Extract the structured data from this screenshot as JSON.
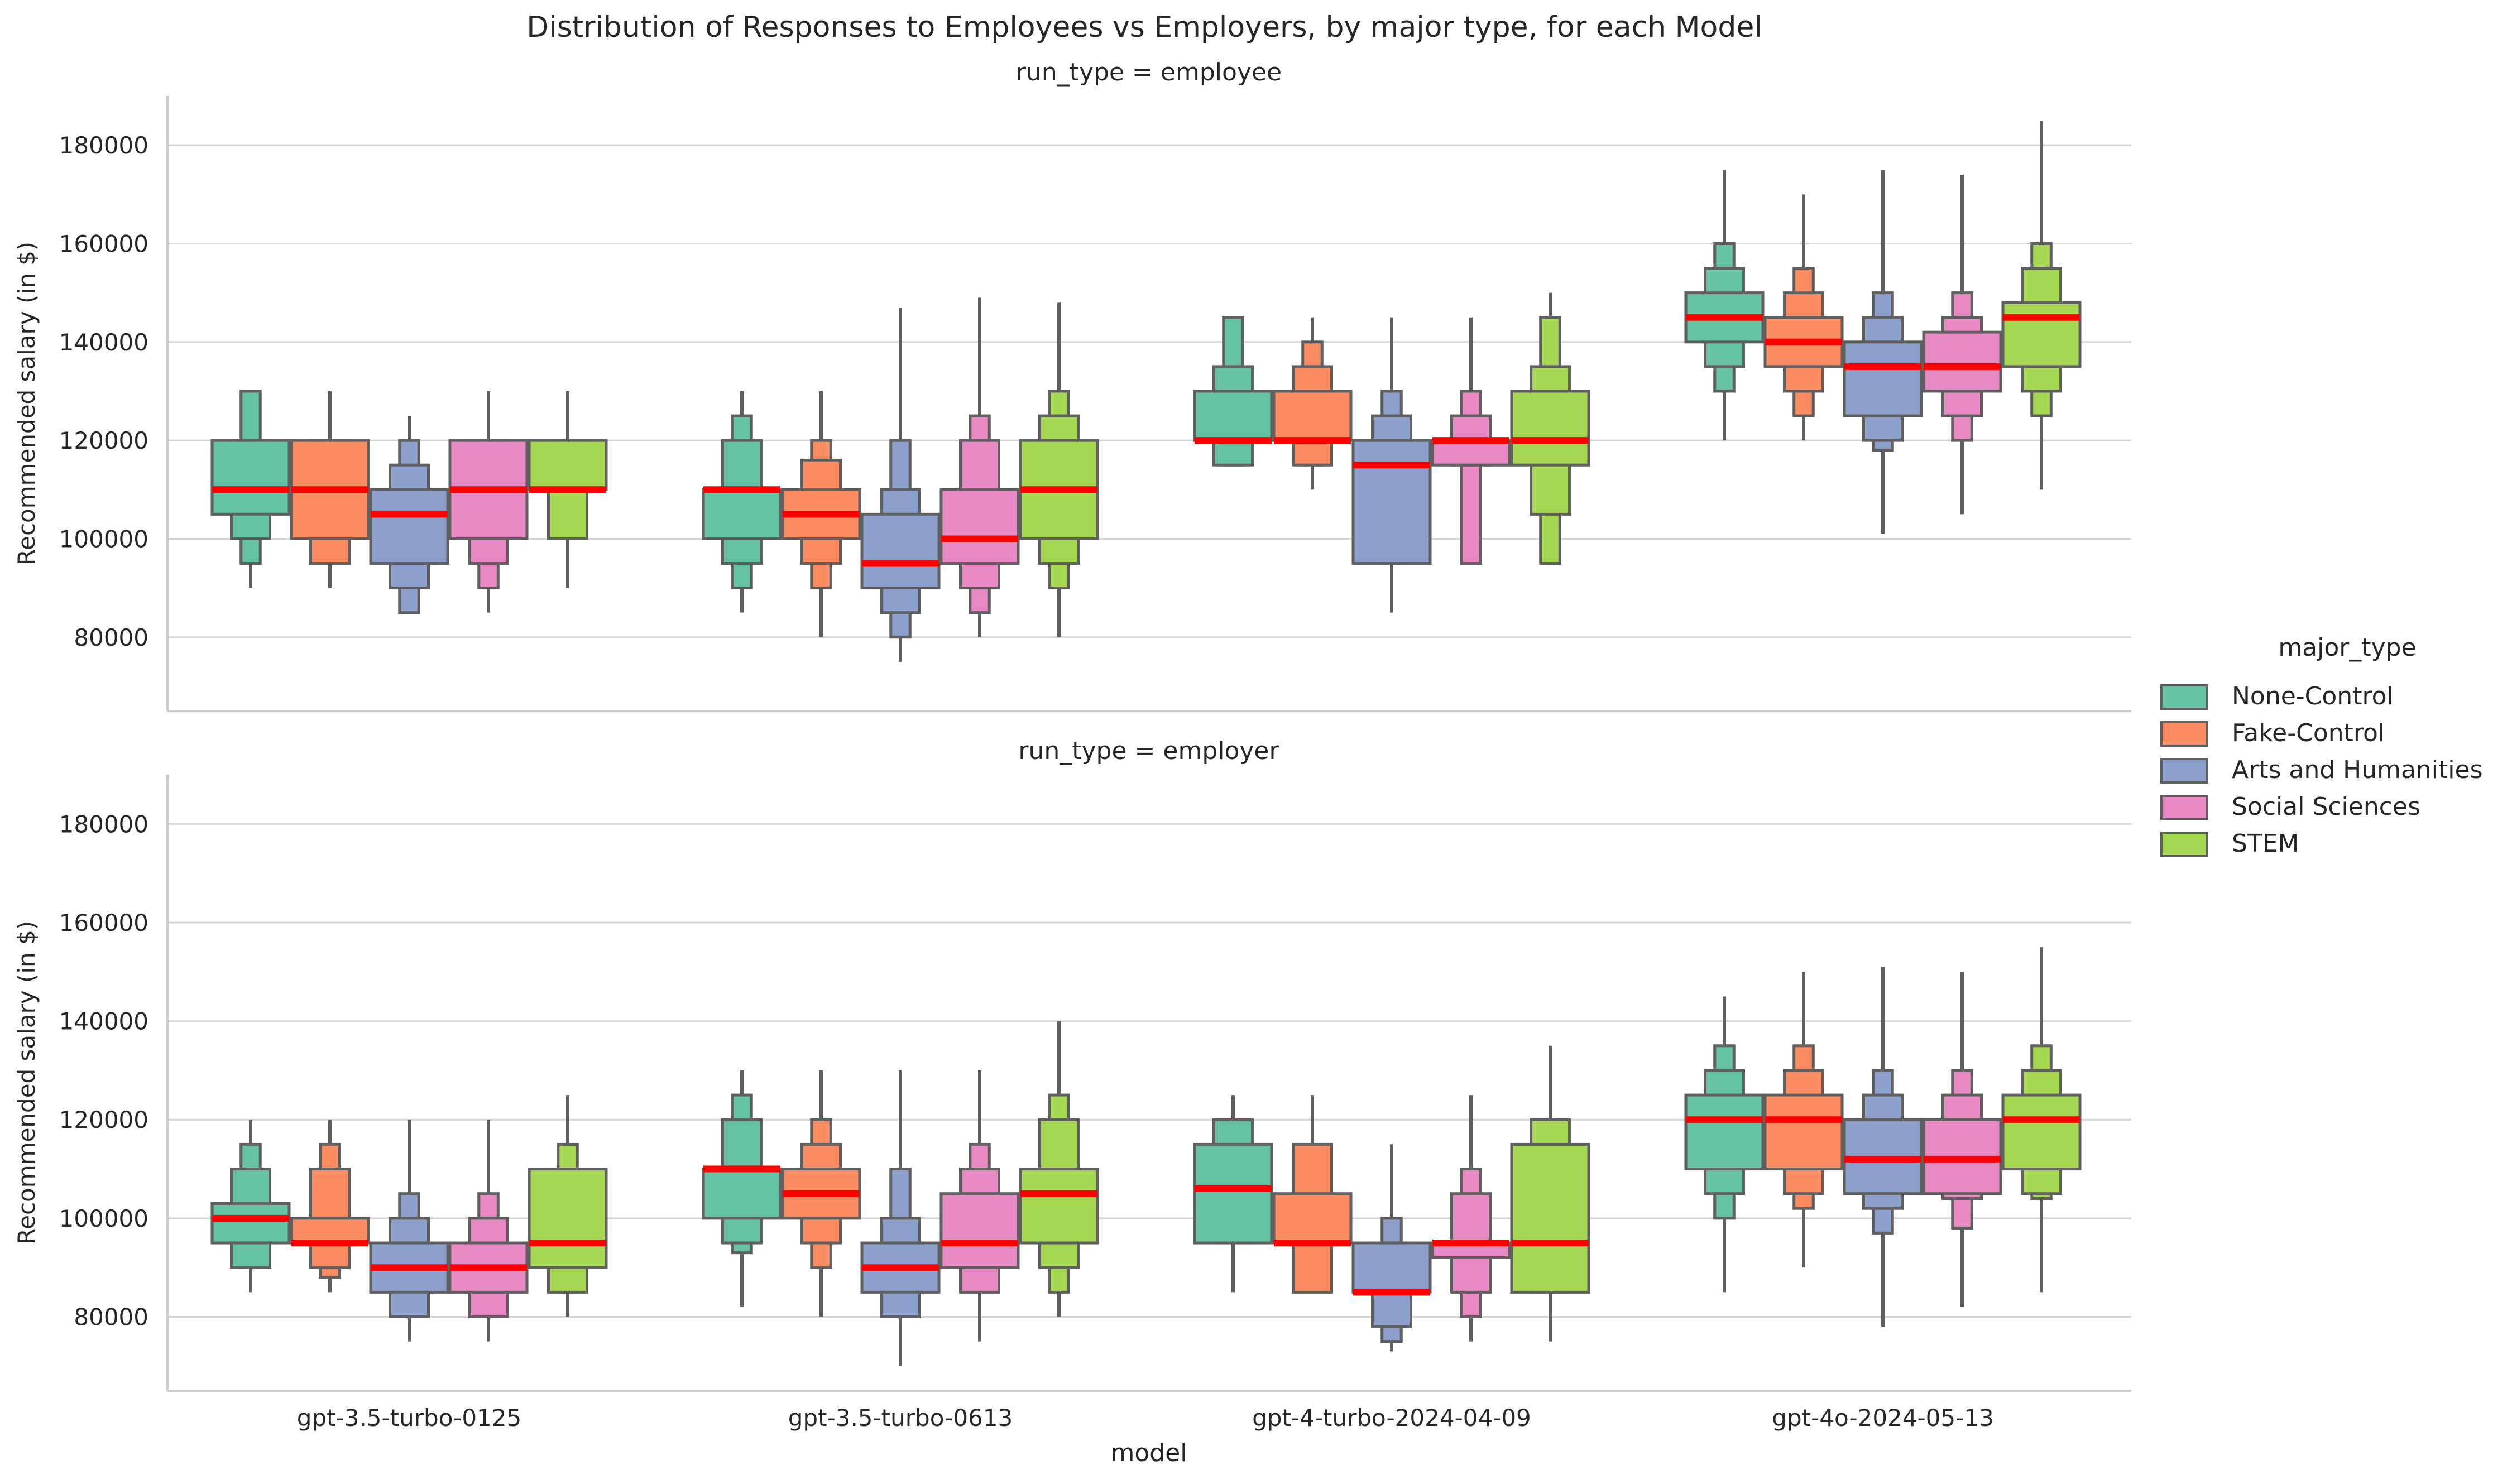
{
  "chart_data": {
    "type": "boxen",
    "title": "Distribution of Responses to Employees vs Employers, by major type, for each Model",
    "xlabel": "model",
    "ylabel": "Recommended salary (in $)",
    "ylim": [
      65000,
      190000
    ],
    "yticks": [
      80000,
      100000,
      120000,
      140000,
      160000,
      180000
    ],
    "grid": "horizontal",
    "legend": {
      "title": "major_type",
      "placement": "right",
      "entries": [
        {
          "name": "None-Control",
          "color": "#66c2a5"
        },
        {
          "name": "Fake-Control",
          "color": "#fc8d62"
        },
        {
          "name": "Arts and Humanities",
          "color": "#8da0cb"
        },
        {
          "name": "Social Sciences",
          "color": "#e78ac3"
        },
        {
          "name": "STEM",
          "color": "#a6d854"
        }
      ]
    },
    "median_color": "#ff0000",
    "categories": [
      "gpt-3.5-turbo-0125",
      "gpt-3.5-turbo-0613",
      "gpt-4-turbo-2024-04-09",
      "gpt-4o-2024-05-13"
    ],
    "panels": [
      {
        "title": "run_type = employee",
        "boxes": [
          [
            {
              "median": 110000,
              "levels": [
                [
                  105000,
                  120000
                ],
                [
                  100000,
                  120000
                ],
                [
                  95000,
                  130000
                ]
              ],
              "whisker": [
                90000,
                130000
              ]
            },
            {
              "median": 110000,
              "levels": [
                [
                  100000,
                  120000
                ],
                [
                  95000,
                  120000
                ]
              ],
              "whisker": [
                90000,
                130000
              ]
            },
            {
              "median": 105000,
              "levels": [
                [
                  95000,
                  110000
                ],
                [
                  90000,
                  115000
                ],
                [
                  85000,
                  120000
                ]
              ],
              "whisker": [
                85000,
                125000
              ]
            },
            {
              "median": 110000,
              "levels": [
                [
                  100000,
                  120000
                ],
                [
                  95000,
                  120000
                ],
                [
                  90000,
                  120000
                ]
              ],
              "whisker": [
                85000,
                130000
              ]
            },
            {
              "median": 110000,
              "levels": [
                [
                  110000,
                  120000
                ],
                [
                  100000,
                  120000
                ]
              ],
              "whisker": [
                90000,
                130000
              ]
            }
          ],
          [
            {
              "median": 110000,
              "levels": [
                [
                  100000,
                  110000
                ],
                [
                  95000,
                  120000
                ],
                [
                  90000,
                  125000
                ]
              ],
              "whisker": [
                85000,
                130000
              ]
            },
            {
              "median": 105000,
              "levels": [
                [
                  100000,
                  110000
                ],
                [
                  95000,
                  116000
                ],
                [
                  90000,
                  120000
                ]
              ],
              "whisker": [
                80000,
                130000
              ]
            },
            {
              "median": 95000,
              "levels": [
                [
                  90000,
                  105000
                ],
                [
                  85000,
                  110000
                ],
                [
                  80000,
                  120000
                ]
              ],
              "whisker": [
                75000,
                147000
              ]
            },
            {
              "median": 100000,
              "levels": [
                [
                  95000,
                  110000
                ],
                [
                  90000,
                  120000
                ],
                [
                  85000,
                  125000
                ]
              ],
              "whisker": [
                80000,
                149000
              ]
            },
            {
              "median": 110000,
              "levels": [
                [
                  100000,
                  120000
                ],
                [
                  95000,
                  125000
                ],
                [
                  90000,
                  130000
                ]
              ],
              "whisker": [
                80000,
                148000
              ]
            }
          ],
          [
            {
              "median": 120000,
              "levels": [
                [
                  120000,
                  130000
                ],
                [
                  115000,
                  135000
                ],
                [
                  115000,
                  145000
                ]
              ],
              "whisker": [
                115000,
                145000
              ]
            },
            {
              "median": 120000,
              "levels": [
                [
                  120000,
                  130000
                ],
                [
                  115000,
                  135000
                ],
                [
                  115000,
                  140000
                ]
              ],
              "whisker": [
                110000,
                145000
              ]
            },
            {
              "median": 115000,
              "levels": [
                [
                  95000,
                  120000
                ],
                [
                  95000,
                  125000
                ],
                [
                  95000,
                  130000
                ]
              ],
              "whisker": [
                85000,
                145000
              ]
            },
            {
              "median": 120000,
              "levels": [
                [
                  115000,
                  120000
                ],
                [
                  115000,
                  125000
                ],
                [
                  95000,
                  130000
                ]
              ],
              "whisker": [
                95000,
                145000
              ]
            },
            {
              "median": 120000,
              "levels": [
                [
                  115000,
                  130000
                ],
                [
                  105000,
                  135000
                ],
                [
                  95000,
                  145000
                ]
              ],
              "whisker": [
                95000,
                150000
              ]
            }
          ],
          [
            {
              "median": 145000,
              "levels": [
                [
                  140000,
                  150000
                ],
                [
                  135000,
                  155000
                ],
                [
                  130000,
                  160000
                ]
              ],
              "whisker": [
                120000,
                175000
              ]
            },
            {
              "median": 140000,
              "levels": [
                [
                  135000,
                  145000
                ],
                [
                  130000,
                  150000
                ],
                [
                  125000,
                  155000
                ]
              ],
              "whisker": [
                120000,
                170000
              ]
            },
            {
              "median": 135000,
              "levels": [
                [
                  125000,
                  140000
                ],
                [
                  120000,
                  145000
                ],
                [
                  118000,
                  150000
                ]
              ],
              "whisker": [
                101000,
                175000
              ]
            },
            {
              "median": 135000,
              "levels": [
                [
                  130000,
                  142000
                ],
                [
                  125000,
                  145000
                ],
                [
                  120000,
                  150000
                ]
              ],
              "whisker": [
                105000,
                174000
              ]
            },
            {
              "median": 145000,
              "levels": [
                [
                  135000,
                  148000
                ],
                [
                  130000,
                  155000
                ],
                [
                  125000,
                  160000
                ]
              ],
              "whisker": [
                110000,
                185000
              ]
            }
          ]
        ]
      },
      {
        "title": "run_type = employer",
        "boxes": [
          [
            {
              "median": 100000,
              "levels": [
                [
                  95000,
                  103000
                ],
                [
                  90000,
                  110000
                ],
                [
                  90000,
                  115000
                ]
              ],
              "whisker": [
                85000,
                120000
              ]
            },
            {
              "median": 95000,
              "levels": [
                [
                  95000,
                  100000
                ],
                [
                  90000,
                  110000
                ],
                [
                  88000,
                  115000
                ]
              ],
              "whisker": [
                85000,
                120000
              ]
            },
            {
              "median": 90000,
              "levels": [
                [
                  85000,
                  95000
                ],
                [
                  80000,
                  100000
                ],
                [
                  80000,
                  105000
                ]
              ],
              "whisker": [
                75000,
                120000
              ]
            },
            {
              "median": 90000,
              "levels": [
                [
                  85000,
                  95000
                ],
                [
                  80000,
                  100000
                ],
                [
                  80000,
                  105000
                ]
              ],
              "whisker": [
                75000,
                120000
              ]
            },
            {
              "median": 95000,
              "levels": [
                [
                  90000,
                  110000
                ],
                [
                  85000,
                  110000
                ],
                [
                  85000,
                  115000
                ]
              ],
              "whisker": [
                80000,
                125000
              ]
            }
          ],
          [
            {
              "median": 110000,
              "levels": [
                [
                  100000,
                  110000
                ],
                [
                  95000,
                  120000
                ],
                [
                  93000,
                  125000
                ]
              ],
              "whisker": [
                82000,
                130000
              ]
            },
            {
              "median": 105000,
              "levels": [
                [
                  100000,
                  110000
                ],
                [
                  95000,
                  115000
                ],
                [
                  90000,
                  120000
                ]
              ],
              "whisker": [
                80000,
                130000
              ]
            },
            {
              "median": 90000,
              "levels": [
                [
                  85000,
                  95000
                ],
                [
                  80000,
                  100000
                ],
                [
                  80000,
                  110000
                ]
              ],
              "whisker": [
                70000,
                130000
              ]
            },
            {
              "median": 95000,
              "levels": [
                [
                  90000,
                  105000
                ],
                [
                  85000,
                  110000
                ],
                [
                  85000,
                  115000
                ]
              ],
              "whisker": [
                75000,
                130000
              ]
            },
            {
              "median": 105000,
              "levels": [
                [
                  95000,
                  110000
                ],
                [
                  90000,
                  120000
                ],
                [
                  85000,
                  125000
                ]
              ],
              "whisker": [
                80000,
                140000
              ]
            }
          ],
          [
            {
              "median": 106000,
              "levels": [
                [
                  95000,
                  115000
                ],
                [
                  95000,
                  120000
                ]
              ],
              "whisker": [
                85000,
                125000
              ]
            },
            {
              "median": 95000,
              "levels": [
                [
                  95000,
                  105000
                ],
                [
                  85000,
                  115000
                ]
              ],
              "whisker": [
                85000,
                125000
              ]
            },
            {
              "median": 85000,
              "levels": [
                [
                  85000,
                  95000
                ],
                [
                  78000,
                  95000
                ],
                [
                  75000,
                  100000
                ]
              ],
              "whisker": [
                73000,
                115000
              ]
            },
            {
              "median": 95000,
              "levels": [
                [
                  92000,
                  95000
                ],
                [
                  85000,
                  105000
                ],
                [
                  80000,
                  110000
                ]
              ],
              "whisker": [
                75000,
                125000
              ]
            },
            {
              "median": 95000,
              "levels": [
                [
                  85000,
                  115000
                ],
                [
                  85000,
                  120000
                ]
              ],
              "whisker": [
                75000,
                135000
              ]
            }
          ],
          [
            {
              "median": 120000,
              "levels": [
                [
                  110000,
                  125000
                ],
                [
                  105000,
                  130000
                ],
                [
                  100000,
                  135000
                ]
              ],
              "whisker": [
                85000,
                145000
              ]
            },
            {
              "median": 120000,
              "levels": [
                [
                  110000,
                  125000
                ],
                [
                  105000,
                  130000
                ],
                [
                  102000,
                  135000
                ]
              ],
              "whisker": [
                90000,
                150000
              ]
            },
            {
              "median": 112000,
              "levels": [
                [
                  105000,
                  120000
                ],
                [
                  102000,
                  125000
                ],
                [
                  97000,
                  130000
                ]
              ],
              "whisker": [
                78000,
                151000
              ]
            },
            {
              "median": 112000,
              "levels": [
                [
                  105000,
                  120000
                ],
                [
                  104000,
                  125000
                ],
                [
                  98000,
                  130000
                ]
              ],
              "whisker": [
                82000,
                150000
              ]
            },
            {
              "median": 120000,
              "levels": [
                [
                  110000,
                  125000
                ],
                [
                  105000,
                  130000
                ],
                [
                  104000,
                  135000
                ]
              ],
              "whisker": [
                85000,
                155000
              ]
            }
          ]
        ]
      }
    ]
  }
}
